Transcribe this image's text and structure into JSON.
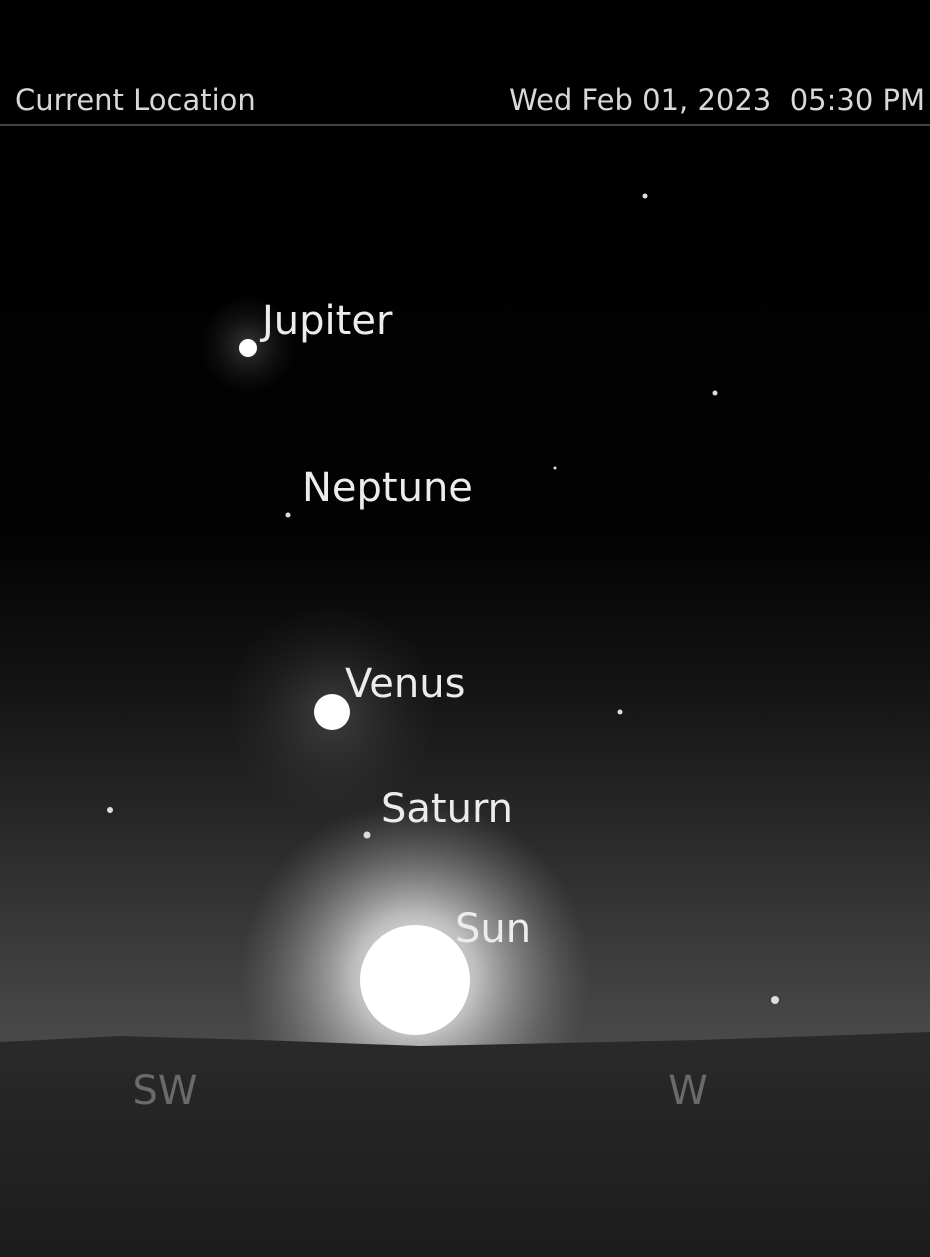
{
  "header": {
    "location": "Current Location",
    "datetime": "Wed Feb 01, 2023  05:30 PM"
  },
  "objects": [
    {
      "label": "Jupiter"
    },
    {
      "label": "Neptune"
    },
    {
      "label": "Venus"
    },
    {
      "label": "Saturn"
    },
    {
      "label": "Sun"
    }
  ],
  "compass": [
    "SW",
    "W"
  ]
}
